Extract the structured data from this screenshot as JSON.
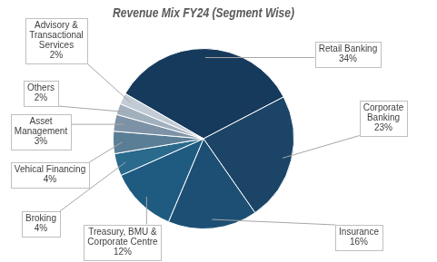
{
  "chart_data": {
    "type": "pie",
    "title": "Revenue Mix FY24 (Segment Wise)",
    "categories": [
      "Retail Banking",
      "Corporate Banking",
      "Insurance",
      "Treasury, BMU & Corporate Centre",
      "Broking",
      "Vehical Financing",
      "Asset Management",
      "Others",
      "Advisory & Transactional Services"
    ],
    "values": [
      34,
      23,
      16,
      12,
      4,
      4,
      3,
      2,
      2
    ],
    "value_labels": [
      "34%",
      "23%",
      "16%",
      "12%",
      "4%",
      "4%",
      "3%",
      "2%",
      "2%"
    ],
    "colors": [
      "#163a5c",
      "#1b4467",
      "#1d4f74",
      "#1f5b81",
      "#2a6a8d",
      "#5b7e97",
      "#7d92a6",
      "#a2b0be",
      "#c3ccd6"
    ],
    "data_labels": true
  }
}
